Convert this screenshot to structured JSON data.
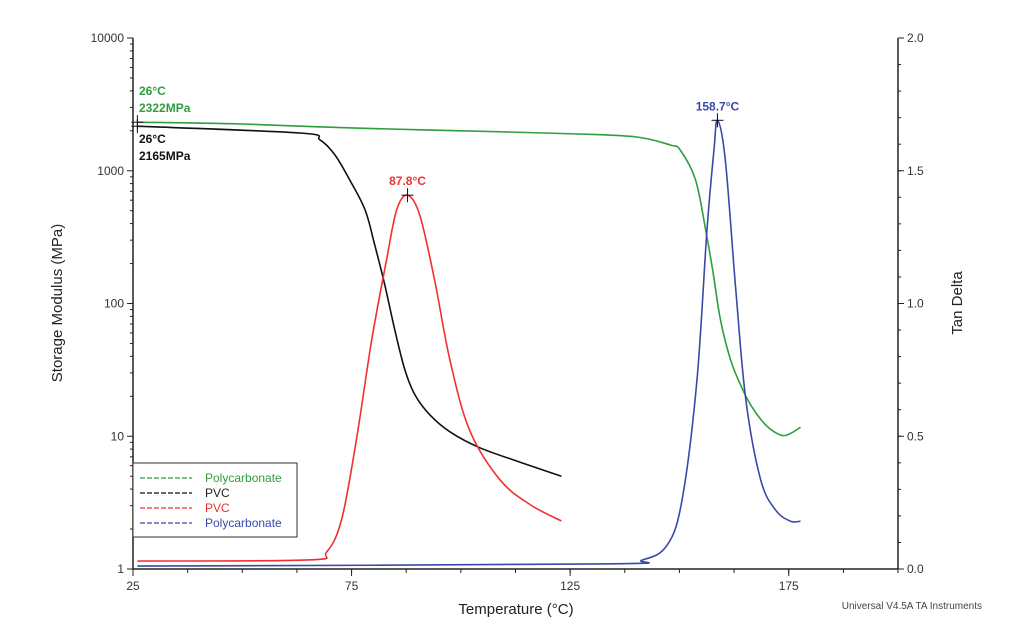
{
  "chart_data": {
    "type": "line",
    "xlabel": "Temperature (°C)",
    "ylabel": "Storage Modulus (MPa)",
    "y2label": "Tan Delta",
    "xlim": [
      25,
      200
    ],
    "ylim": [
      1,
      10000
    ],
    "y_scale": "log",
    "y2lim": [
      0.0,
      2.0
    ],
    "x_ticks": [
      "25",
      "75",
      "125",
      "175"
    ],
    "y_ticks": [
      "1",
      "10",
      "100",
      "1000",
      "10000"
    ],
    "y2_ticks": [
      "0.0",
      "0.5",
      "1.0",
      "1.5",
      "2.0"
    ],
    "grid": false,
    "legend_position": "bottom-left",
    "footer": "Universal V4.5A TA Instruments",
    "series": [
      {
        "name": "Polycarbonate",
        "axis": "left",
        "color": "#2e9e3e",
        "x": [
          26,
          50,
          75,
          100,
          125,
          140,
          148,
          150.2,
          153.7,
          156,
          157.6,
          159.4,
          161.7,
          164,
          166.3,
          169.7,
          173.2,
          175.4,
          177.7
        ],
        "y": [
          2322,
          2250,
          2100,
          2000,
          1900,
          1800,
          1560,
          1430,
          850,
          358,
          179,
          75,
          37.6,
          24.3,
          17.2,
          12.2,
          10.2,
          10.5,
          11.7
        ]
      },
      {
        "name": "PVC",
        "axis": "left",
        "color": "#111111",
        "x": [
          26,
          63.2,
          67.8,
          71.2,
          74.6,
          78.1,
          80.3,
          82.6,
          84.9,
          87.2,
          89.5,
          92.9,
          97.5,
          104.3,
          113.4,
          123
        ],
        "y": [
          2165,
          1925,
          1706,
          1315,
          850,
          506,
          276,
          138,
          63,
          31.6,
          20.5,
          14.5,
          10.8,
          8.2,
          6.4,
          5.0
        ]
      },
      {
        "name": "PVC",
        "axis": "right",
        "color": "#f03030",
        "x": [
          26,
          65,
          69.3,
          72.7,
          76.1,
          79.6,
          83,
          85.3,
          87.8,
          90.6,
          94,
          97.5,
          102,
          109,
          116,
          123
        ],
        "y": [
          0.03,
          0.034,
          0.064,
          0.185,
          0.486,
          0.862,
          1.164,
          1.352,
          1.408,
          1.333,
          1.088,
          0.787,
          0.523,
          0.335,
          0.241,
          0.181
        ]
      },
      {
        "name": "Polycarbonate",
        "axis": "right",
        "color": "#3a48a8",
        "x": [
          26,
          132,
          141.5,
          147.2,
          150.6,
          154,
          156.3,
          157.9,
          158.7,
          160.5,
          162.9,
          165.2,
          168.6,
          172,
          175.4,
          177.7
        ],
        "y": [
          0.011,
          0.019,
          0.034,
          0.09,
          0.26,
          0.71,
          1.277,
          1.578,
          1.69,
          1.54,
          1.05,
          0.636,
          0.335,
          0.222,
          0.18,
          0.18
        ]
      }
    ],
    "annotations": [
      {
        "lines": [
          "26°C",
          "2322MPa"
        ],
        "x": 26,
        "y": 2322,
        "axis": "left",
        "color": "#2e9e3e"
      },
      {
        "lines": [
          "26°C",
          "2165MPa"
        ],
        "x": 26,
        "y": 2165,
        "axis": "left",
        "color": "#111111"
      },
      {
        "lines": [
          "87.8°C"
        ],
        "x": 87.8,
        "y": 1.408,
        "axis": "right",
        "color": "#f03030"
      },
      {
        "lines": [
          "158.7°C"
        ],
        "x": 158.7,
        "y": 1.69,
        "axis": "right",
        "color": "#3a48a8"
      }
    ]
  }
}
